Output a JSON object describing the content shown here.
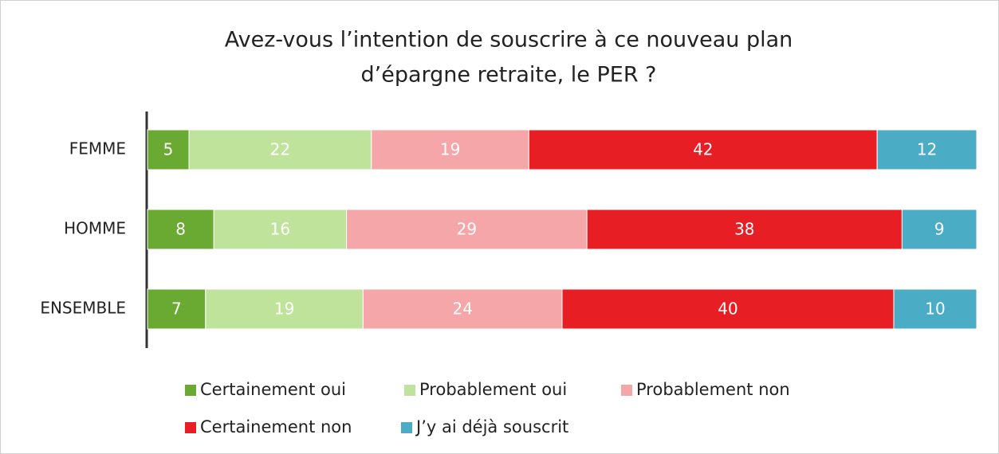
{
  "chart_data": {
    "type": "stacked-bar-horizontal",
    "title": [
      "Avez-vous l’intention de souscrire à ce nouveau plan",
      "d’épargne retraite, le PER ?"
    ],
    "categories": [
      "FEMME",
      "HOMME",
      "ENSEMBLE"
    ],
    "series": [
      {
        "name": "Certainement oui",
        "color": "#6aaa33",
        "values": [
          5,
          8,
          7
        ]
      },
      {
        "name": "Probablement oui",
        "color": "#c0e39b",
        "values": [
          22,
          16,
          19
        ]
      },
      {
        "name": "Probablement non",
        "color": "#f4a6a9",
        "values": [
          19,
          29,
          24
        ]
      },
      {
        "name": "Certainement non",
        "color": "#e81e25",
        "values": [
          42,
          38,
          40
        ]
      },
      {
        "name": "J’y ai déjà souscrit",
        "color": "#4bacc6",
        "values": [
          12,
          9,
          10
        ]
      }
    ],
    "legend": "bottom"
  }
}
